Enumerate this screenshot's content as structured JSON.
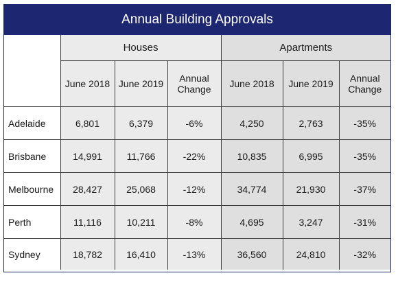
{
  "title": "Annual Building Approvals",
  "groups": {
    "houses": "Houses",
    "apartments": "Apartments"
  },
  "subheaders": [
    "June 2018",
    "June 2019",
    "Annual Change",
    "June 2018",
    "June 2019",
    "Annual Change"
  ],
  "colors": {
    "title_bg": "#1d2671",
    "title_fg": "#ffffff",
    "houses_bg": "#ebebeb",
    "apartments_bg": "#dfdfdf"
  },
  "rows": [
    {
      "city": "Adelaide",
      "cells": [
        "6,801",
        "6,379",
        "-6%",
        "4,250",
        "2,763",
        "-35%"
      ]
    },
    {
      "city": "Brisbane",
      "cells": [
        "14,991",
        "11,766",
        "-22%",
        "10,835",
        "6,995",
        "-35%"
      ]
    },
    {
      "city": "Melbourne",
      "cells": [
        "28,427",
        "25,068",
        "-12%",
        "34,774",
        "21,930",
        "-37%"
      ]
    },
    {
      "city": "Perth",
      "cells": [
        "11,116",
        "10,211",
        "-8%",
        "4,695",
        "3,247",
        "-31%"
      ]
    },
    {
      "city": "Sydney",
      "cells": [
        "18,782",
        "16,410",
        "-13%",
        "36,560",
        "24,810",
        "-32%"
      ]
    }
  ],
  "chart_data": {
    "type": "table",
    "title": "Annual Building Approvals",
    "column_groups": [
      {
        "name": "Houses",
        "columns": [
          "June 2018",
          "June 2019",
          "Annual Change"
        ]
      },
      {
        "name": "Apartments",
        "columns": [
          "June 2018",
          "June 2019",
          "Annual Change"
        ]
      }
    ],
    "categories": [
      "Adelaide",
      "Brisbane",
      "Melbourne",
      "Perth",
      "Sydney"
    ],
    "series": [
      {
        "name": "Houses June 2018",
        "values": [
          6801,
          14991,
          28427,
          11116,
          18782
        ]
      },
      {
        "name": "Houses June 2019",
        "values": [
          6379,
          11766,
          25068,
          10211,
          16410
        ]
      },
      {
        "name": "Houses Annual Change",
        "values": [
          -6,
          -22,
          -12,
          -8,
          -13
        ]
      },
      {
        "name": "Apartments June 2018",
        "values": [
          4250,
          10835,
          34774,
          4695,
          36560
        ]
      },
      {
        "name": "Apartments June 2019",
        "values": [
          2763,
          6995,
          21930,
          3247,
          24810
        ]
      },
      {
        "name": "Apartments Annual Change",
        "values": [
          -35,
          -35,
          -37,
          -31,
          -32
        ]
      }
    ]
  }
}
